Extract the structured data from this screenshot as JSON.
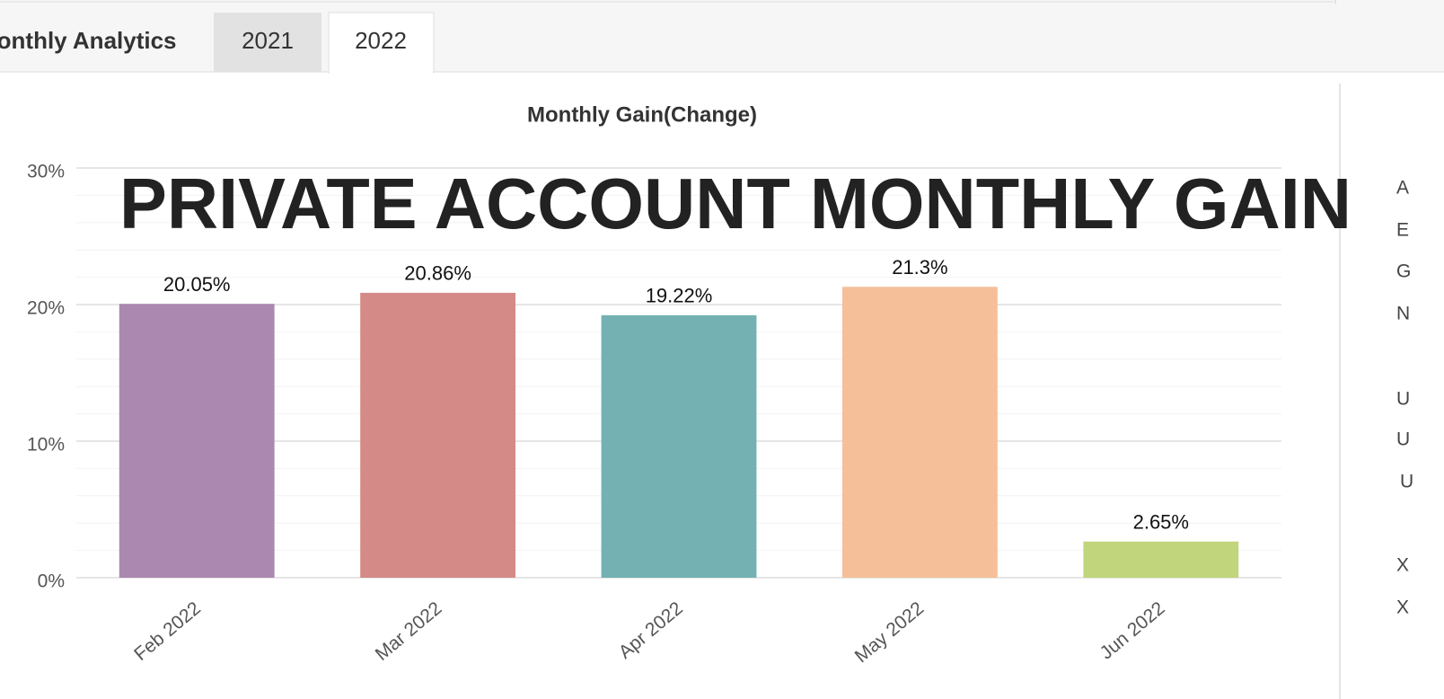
{
  "tabs": [
    "Monthly Analytics",
    "2021",
    "2022"
  ],
  "side_labels": [
    "A",
    "E",
    "G",
    "N",
    "U",
    "U",
    "U",
    "X",
    "X"
  ],
  "chart_data": {
    "type": "bar",
    "title": "Monthly Gain(Change)",
    "annotation": "PRIVATE ACCOUNT MONTHLY GAIN",
    "categories": [
      "Feb 2022",
      "Mar 2022",
      "Apr 2022",
      "May 2022",
      "Jun 2022"
    ],
    "values": [
      20.05,
      20.86,
      19.22,
      21.3,
      2.65
    ],
    "value_labels": [
      "20.05%",
      "20.86%",
      "19.22%",
      "21.3%",
      "2.65%"
    ],
    "colors": [
      "#ab88b0",
      "#d48a87",
      "#73b1b2",
      "#f5bf99",
      "#c1d57c"
    ],
    "ylim": [
      0,
      30
    ],
    "yticks": [
      {
        "value": 0,
        "label": "0%"
      },
      {
        "value": 10,
        "label": "10%"
      },
      {
        "value": 20,
        "label": "20%"
      },
      {
        "value": 30,
        "label": "30%"
      }
    ],
    "minor_yticks": [
      2,
      4,
      6,
      8,
      12,
      14,
      16,
      18,
      22,
      24,
      26,
      28
    ],
    "grid": true
  }
}
